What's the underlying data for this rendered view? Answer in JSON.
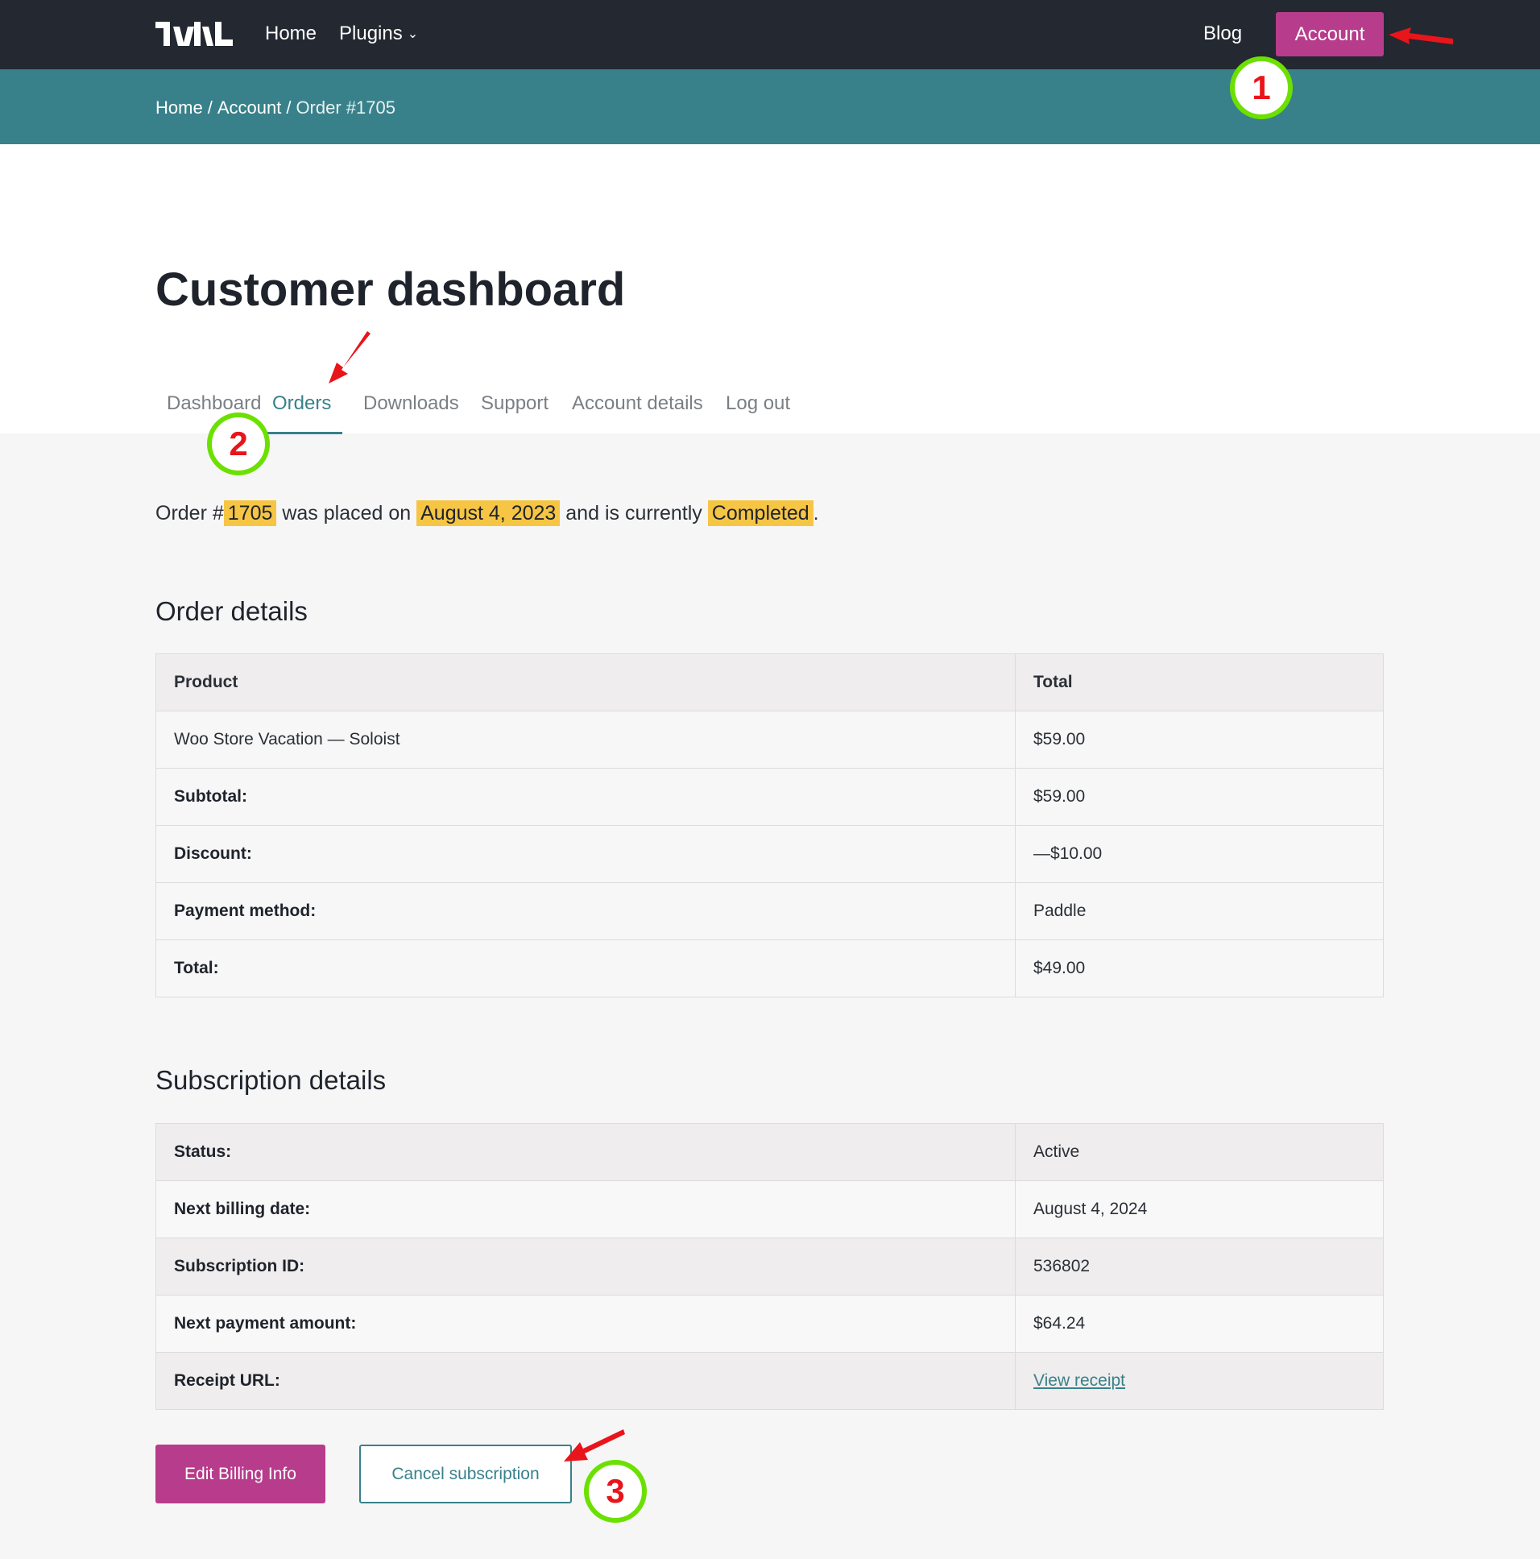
{
  "nav": {
    "home": "Home",
    "plugins": "Plugins",
    "blog": "Blog",
    "account": "Account"
  },
  "breadcrumb": {
    "home": "Home",
    "account": "Account",
    "current": "Order #1705",
    "separator": "/"
  },
  "page": {
    "title": "Customer dashboard"
  },
  "tabs": {
    "dashboard": "Dashboard",
    "orders": "Orders",
    "downloads": "Downloads",
    "support": "Support",
    "account_details": "Account details",
    "logout": "Log out",
    "active": "Orders"
  },
  "summary": {
    "prefix": "Order #",
    "order_number": "1705",
    "mid1": "was placed on",
    "date": "August 4, 2023",
    "mid2": "and is currently",
    "status": "Completed",
    "end": "."
  },
  "order_details": {
    "title": "Order details",
    "header_product": "Product",
    "header_total": "Total",
    "product_name": "Woo Store Vacation — Soloist",
    "product_total": "$59.00",
    "subtotal_label": "Subtotal:",
    "subtotal_value": "$59.00",
    "discount_label": "Discount:",
    "discount_value": "—$10.00",
    "payment_label": "Payment method:",
    "payment_value": "Paddle",
    "total_label": "Total:",
    "total_value": "$49.00"
  },
  "subscription": {
    "title": "Subscription details",
    "status_label": "Status:",
    "status_value": "Active",
    "next_billing_label": "Next billing date:",
    "next_billing_value": "August 4, 2024",
    "id_label": "Subscription ID:",
    "id_value": "536802",
    "next_payment_label": "Next payment amount:",
    "next_payment_value": "$64.24",
    "receipt_label": "Receipt URL:",
    "receipt_link": "View receipt"
  },
  "buttons": {
    "edit_billing": "Edit Billing Info",
    "cancel_subscription": "Cancel subscription"
  },
  "annotations": {
    "step1": "1",
    "step2": "2",
    "step3": "3",
    "badge_ring_color": "#6ce000",
    "arrow_color": "#e8151b"
  },
  "colors": {
    "brand_magenta": "#b73c8b",
    "teal": "#38818a",
    "highlight": "#f6c544",
    "topbar": "#232831"
  },
  "icons": {
    "logo": "site-logo",
    "plugins_dropdown": "chevron-down-icon"
  }
}
